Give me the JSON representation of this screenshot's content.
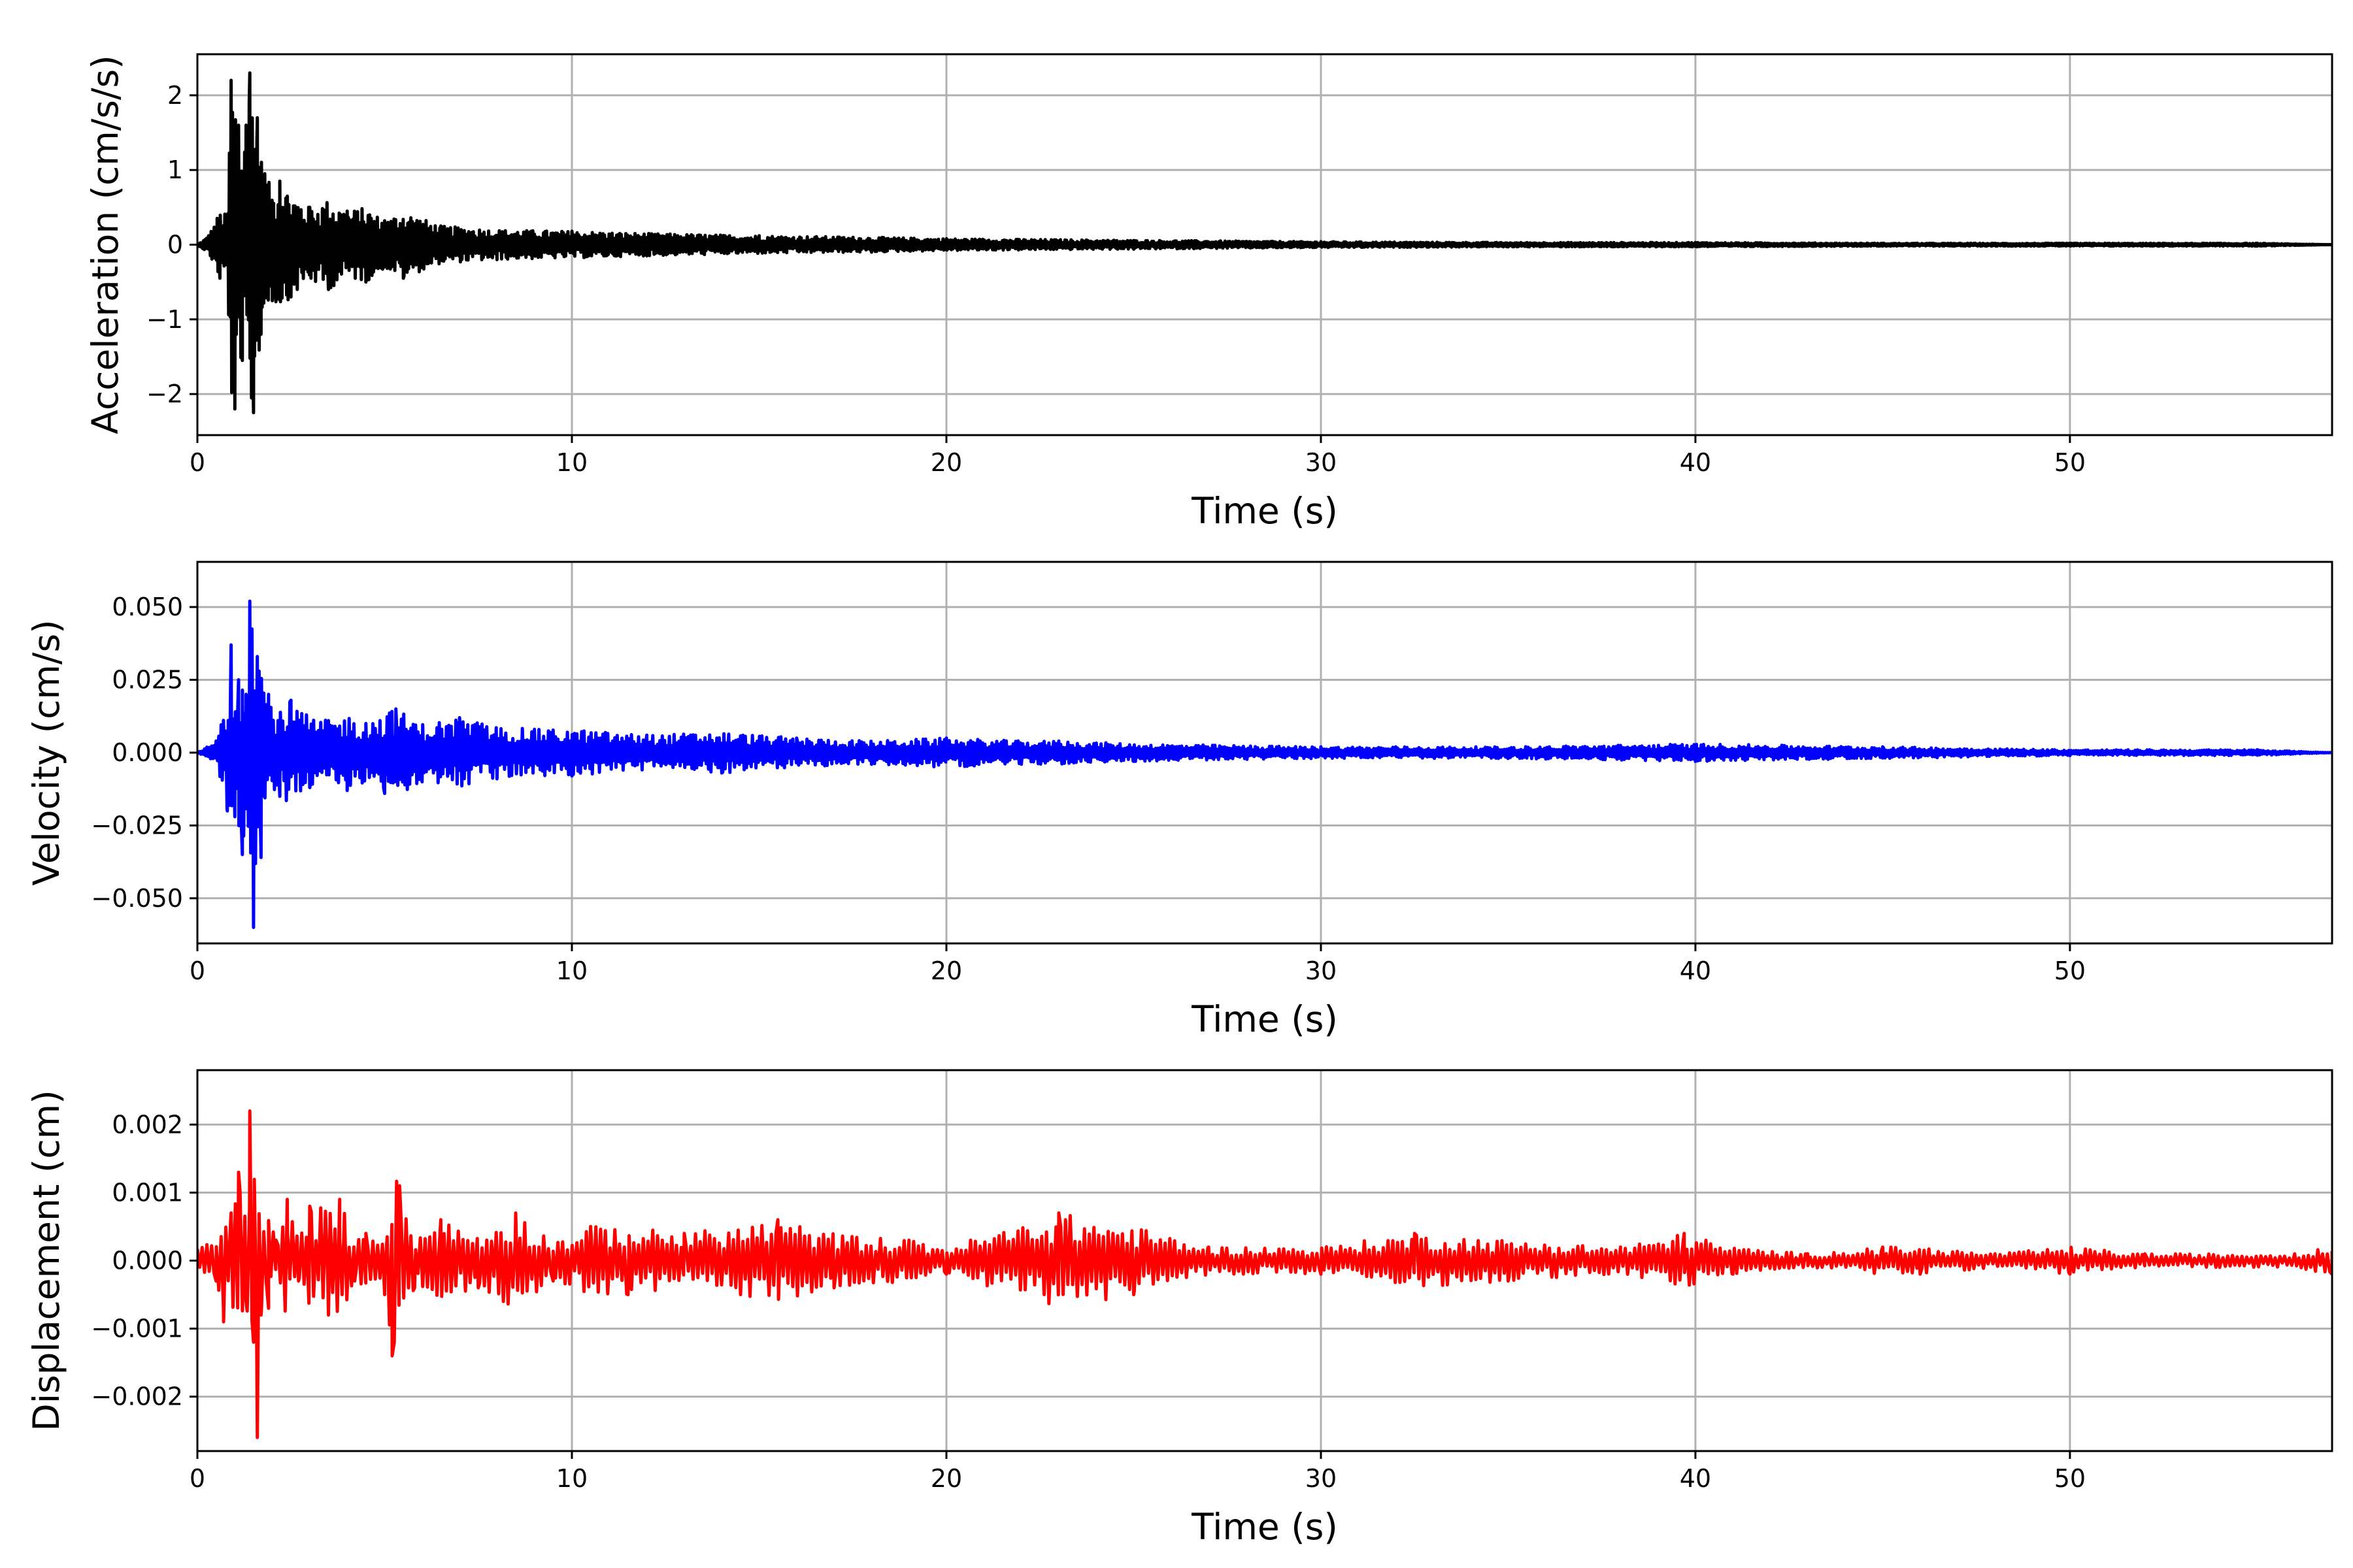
{
  "chart_data": [
    {
      "type": "line",
      "xlabel": "Time (s)",
      "ylabel": "Acceleration (cm/s/s)",
      "xlim": [
        0,
        57
      ],
      "ylim": [
        -2.55,
        2.55
      ],
      "xticks": [
        0,
        10,
        20,
        30,
        40,
        50
      ],
      "xtick_labels": [
        "0",
        "10",
        "20",
        "30",
        "40",
        "50"
      ],
      "yticks": [
        -2,
        -1,
        0,
        1,
        2
      ],
      "ytick_labels": [
        "−2",
        "−1",
        "0",
        "1",
        "2"
      ],
      "grid": true,
      "color": "#000000",
      "series": [
        {
          "x": [
            0,
            0.3,
            0.6,
            0.8,
            0.9,
            1.0,
            1.1,
            1.2,
            1.3,
            1.4,
            1.5,
            1.6,
            1.7,
            1.8,
            2.0,
            2.2,
            2.5,
            3.0,
            3.5,
            4.0,
            4.5,
            5.0,
            5.5,
            6.5,
            8,
            10,
            12,
            15,
            18,
            20,
            25,
            30,
            35,
            40,
            45,
            50,
            55,
            57
          ],
          "y": [
            0,
            0.12,
            -0.45,
            0.4,
            2.2,
            -2.2,
            1.6,
            -1.55,
            1.6,
            2.3,
            -2.25,
            1.7,
            -1.2,
            0.95,
            -0.75,
            0.85,
            -0.7,
            0.5,
            -0.6,
            0.45,
            -0.5,
            0.32,
            -0.45,
            0.25,
            -0.2,
            0.18,
            -0.15,
            0.12,
            -0.1,
            0.08,
            -0.06,
            0.04,
            -0.03,
            0.03,
            -0.02,
            0.02,
            -0.02,
            0
          ]
        }
      ]
    },
    {
      "type": "line",
      "xlabel": "Time (s)",
      "ylabel": "Velocity (cm/s)",
      "xlim": [
        0,
        57
      ],
      "ylim": [
        -0.0655,
        0.0655
      ],
      "xticks": [
        0,
        10,
        20,
        30,
        40,
        50
      ],
      "xtick_labels": [
        "0",
        "10",
        "20",
        "30",
        "40",
        "50"
      ],
      "yticks": [
        -0.05,
        -0.025,
        0,
        0.025,
        0.05
      ],
      "ytick_labels": [
        "−0.050",
        "−0.025",
        "0.000",
        "0.025",
        "0.050"
      ],
      "grid": true,
      "color": "#0000ff",
      "series": [
        {
          "x": [
            0,
            0.5,
            0.8,
            0.9,
            1.0,
            1.1,
            1.2,
            1.3,
            1.4,
            1.5,
            1.6,
            1.7,
            1.9,
            2.2,
            2.5,
            3.0,
            3.5,
            4.0,
            4.5,
            5.0,
            5.3,
            6,
            7,
            8,
            9,
            10,
            12,
            14,
            16,
            18,
            20,
            22,
            23,
            25,
            30,
            32,
            35,
            40,
            45,
            50,
            55,
            57
          ],
          "y": [
            0,
            0.004,
            -0.02,
            0.037,
            -0.022,
            0.025,
            -0.035,
            0.02,
            0.052,
            -0.06,
            0.033,
            -0.036,
            0.02,
            -0.015,
            0.018,
            -0.012,
            0.011,
            -0.013,
            0.01,
            -0.014,
            0.015,
            -0.01,
            0.012,
            -0.009,
            0.008,
            -0.008,
            0.006,
            -0.007,
            0.005,
            -0.004,
            0.005,
            -0.004,
            0.004,
            -0.003,
            0.002,
            0.002,
            -0.002,
            -0.003,
            0.002,
            -0.001,
            0.001,
            0
          ]
        }
      ]
    },
    {
      "type": "line",
      "xlabel": "Time (s)",
      "ylabel": "Displacement (cm)",
      "xlim": [
        0,
        57
      ],
      "ylim": [
        -0.0028,
        0.0028
      ],
      "xticks": [
        0,
        10,
        20,
        30,
        40,
        50
      ],
      "xtick_labels": [
        "0",
        "10",
        "20",
        "30",
        "40",
        "50"
      ],
      "yticks": [
        -0.002,
        -0.001,
        0,
        0.001,
        0.002
      ],
      "ytick_labels": [
        "−0.002",
        "−0.001",
        "0.000",
        "0.001",
        "0.002"
      ],
      "grid": true,
      "color": "#ff0000",
      "series": [
        {
          "x": [
            0,
            0.5,
            0.7,
            0.9,
            1.1,
            1.3,
            1.4,
            1.5,
            1.6,
            1.7,
            1.9,
            2.1,
            2.4,
            2.7,
            3.0,
            3.5,
            3.8,
            4.2,
            4.5,
            5.0,
            5.2,
            5.4,
            5.8,
            6.5,
            7.5,
            8.5,
            9.5,
            10.5,
            11.5,
            13,
            15.5,
            17,
            19,
            20,
            23,
            25,
            27,
            30,
            32.5,
            35,
            38,
            39.7,
            41,
            43,
            45,
            46,
            48,
            50,
            52,
            54,
            56,
            57
          ],
          "y": [
            0.0002,
            -0.0003,
            -0.0009,
            0.0007,
            0.0013,
            -0.0006,
            0.0022,
            -0.0012,
            -0.0026,
            -0.0008,
            -0.0007,
            0.0003,
            0.0009,
            -0.0003,
            0.0008,
            -0.0008,
            0.0009,
            -0.0003,
            0.0004,
            -0.0005,
            -0.0014,
            0.0011,
            -0.0004,
            0.0006,
            -0.0004,
            0.0007,
            -0.0003,
            0.0005,
            -0.0005,
            0.0004,
            0.0006,
            -0.0004,
            0.0003,
            -0.0002,
            0.0007,
            -0.0005,
            0.0002,
            -0.0002,
            0.0004,
            -0.0003,
            0.0002,
            0.0004,
            -0.0002,
            0.0001,
            0.0002,
            -0.0002,
            0.0001,
            -0.0002,
            0.0001,
            -0.0001,
            0.0001,
            -0.0002
          ]
        }
      ]
    }
  ]
}
